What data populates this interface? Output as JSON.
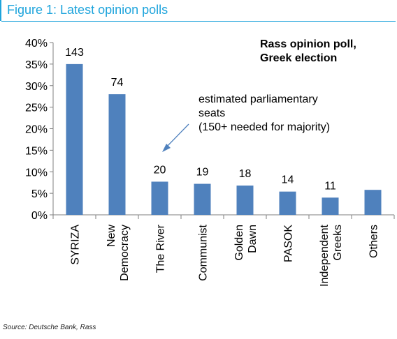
{
  "figure_title": "Figure 1: Latest opinion polls",
  "source": "Source: Deutsche Bank, Rass",
  "colors": {
    "bar": "#4f81bd",
    "title": "#1ea4dc",
    "arrow": "#4f81bd"
  },
  "chart_data": {
    "type": "bar",
    "title": "Rass opinion poll,\nGreek election",
    "categories": [
      "SYRIZA",
      "New\nDemocracy",
      "The River",
      "Communist",
      "Golden\nDawn",
      "PASOK",
      "Independent\nGreeks",
      "Others"
    ],
    "values": [
      35,
      28,
      7.7,
      7.2,
      6.8,
      5.4,
      4.0,
      5.8
    ],
    "data_labels": [
      "143",
      "74",
      "20",
      "19",
      "18",
      "14",
      "11",
      ""
    ],
    "y_ticks": [
      "0%",
      "5%",
      "10%",
      "15%",
      "20%",
      "25%",
      "30%",
      "35%",
      "40%"
    ],
    "ylim": [
      0,
      40
    ],
    "annotation": "estimated parliamentary\nseats\n(150+ needed for majority)",
    "grid": false,
    "legend": "none"
  }
}
